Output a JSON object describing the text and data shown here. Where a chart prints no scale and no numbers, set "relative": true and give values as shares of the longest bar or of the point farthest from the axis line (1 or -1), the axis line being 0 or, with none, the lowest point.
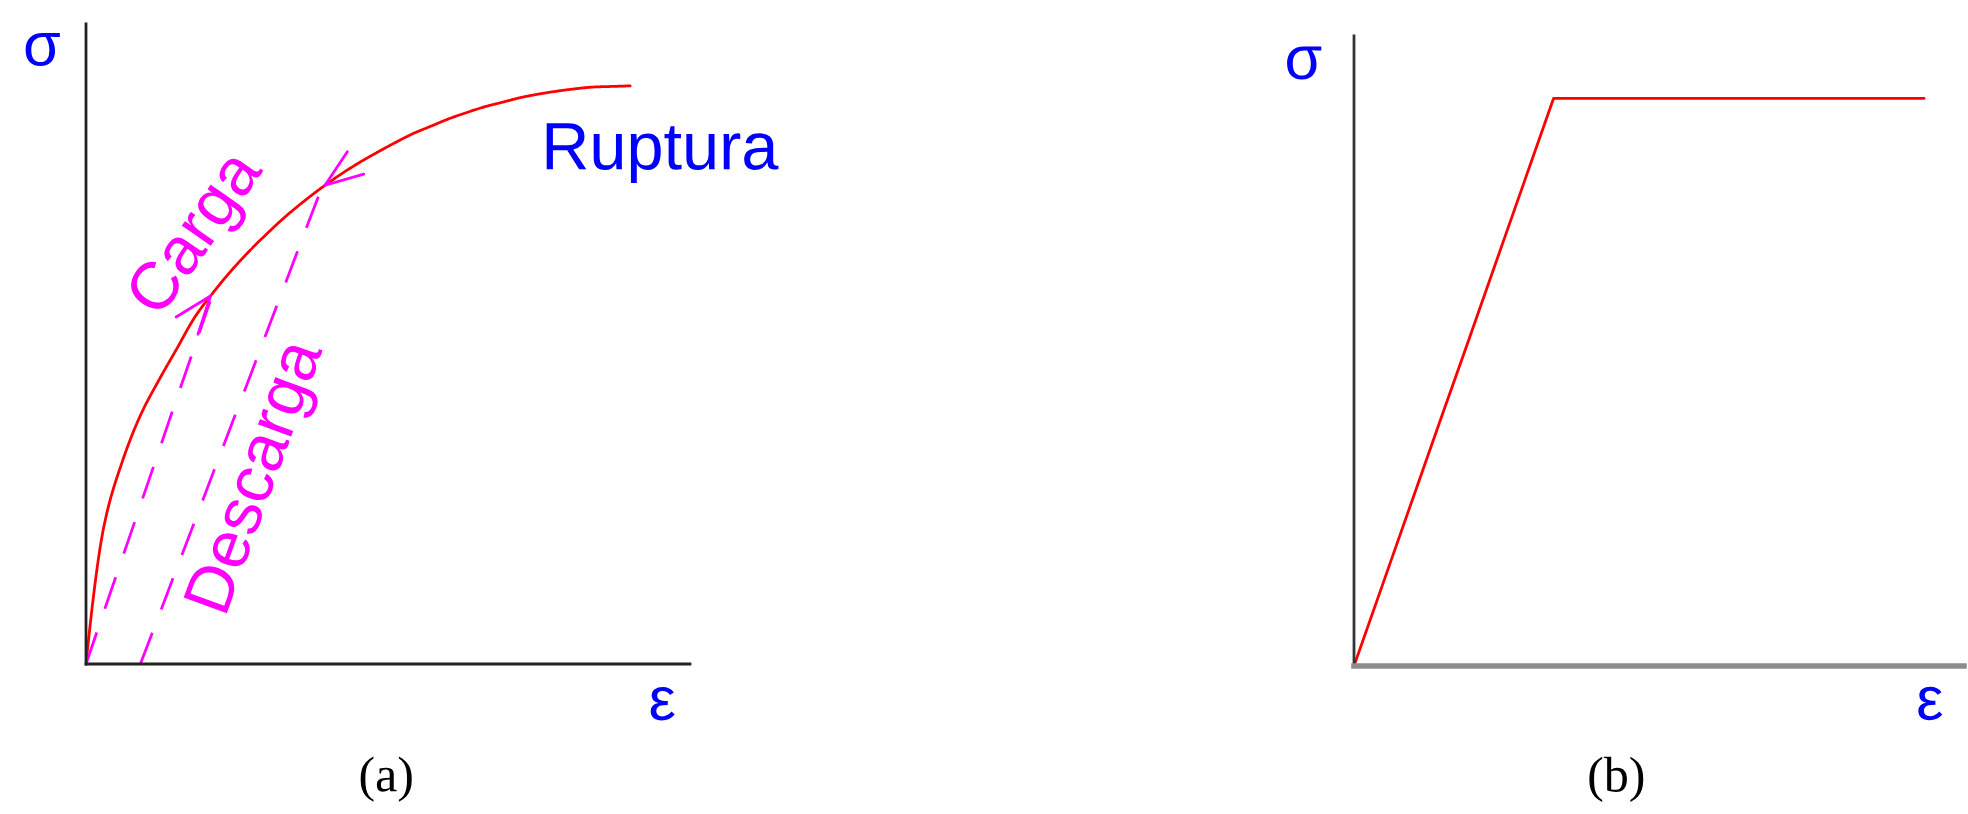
{
  "chart_data": [
    {
      "type": "line",
      "title": "(a)",
      "xlabel": "ε",
      "ylabel": "σ",
      "relative": true,
      "categories": [
        null,
        null,
        null,
        null,
        null,
        null,
        null,
        null,
        null,
        null,
        null,
        null,
        null,
        null,
        null,
        null,
        null,
        null,
        null,
        null,
        null,
        null,
        null,
        null,
        null,
        null,
        null,
        null,
        null,
        null,
        null
      ],
      "series": [
        {
          "color": "#ff0000",
          "values": [
            0,
            0.24,
            0.35,
            0.43,
            0.49,
            0.545,
            0.6,
            0.642,
            0.68,
            0.714,
            0.745,
            0.774,
            0.8,
            0.824,
            0.846,
            0.866,
            0.884,
            0.901,
            0.917,
            0.93,
            0.943,
            0.954,
            0.964,
            0.972,
            0.98,
            0.986,
            0.991,
            0.995,
            0.998,
            0.999,
            1.0
          ]
        },
        {
          "color": "#ff00ff",
          "line_style": "dashed",
          "values": [
            0,
            0.092,
            0.183,
            0.275,
            0.367,
            0.459,
            0.55,
            0.642,
            null,
            null,
            null,
            null,
            null,
            null,
            null,
            null,
            null,
            null,
            null,
            null,
            null,
            null,
            null,
            null,
            null,
            null,
            null,
            null,
            null,
            null,
            null
          ]
        },
        {
          "color": "#ff00ff",
          "line_style": "dashed",
          "values": [
            null,
            null,
            null,
            0,
            0.082,
            0.165,
            0.247,
            0.33,
            0.412,
            0.494,
            0.577,
            0.659,
            0.742,
            0.824,
            null,
            null,
            null,
            null,
            null,
            null,
            null,
            null,
            null,
            null,
            null,
            null,
            null,
            null,
            null,
            null,
            null
          ]
        }
      ],
      "annotations": [
        "Ruptura",
        "Carga",
        "Descarga"
      ]
    },
    {
      "type": "line",
      "title": "(b)",
      "xlabel": "ε",
      "ylabel": "σ",
      "relative": true,
      "categories": [
        null,
        null,
        null,
        null,
        null,
        null,
        null,
        null,
        null,
        null,
        null,
        null,
        null,
        null,
        null,
        null,
        null,
        null,
        null,
        null,
        null
      ],
      "series": [
        {
          "color": "#ff0000",
          "values": [
            0,
            0.143,
            0.286,
            0.429,
            0.571,
            0.714,
            0.857,
            1.0,
            1.0,
            1.0,
            1.0,
            1.0,
            1.0,
            1.0,
            1.0,
            1.0,
            1.0,
            1.0,
            1.0,
            1.0,
            1.0
          ]
        }
      ]
    }
  ]
}
